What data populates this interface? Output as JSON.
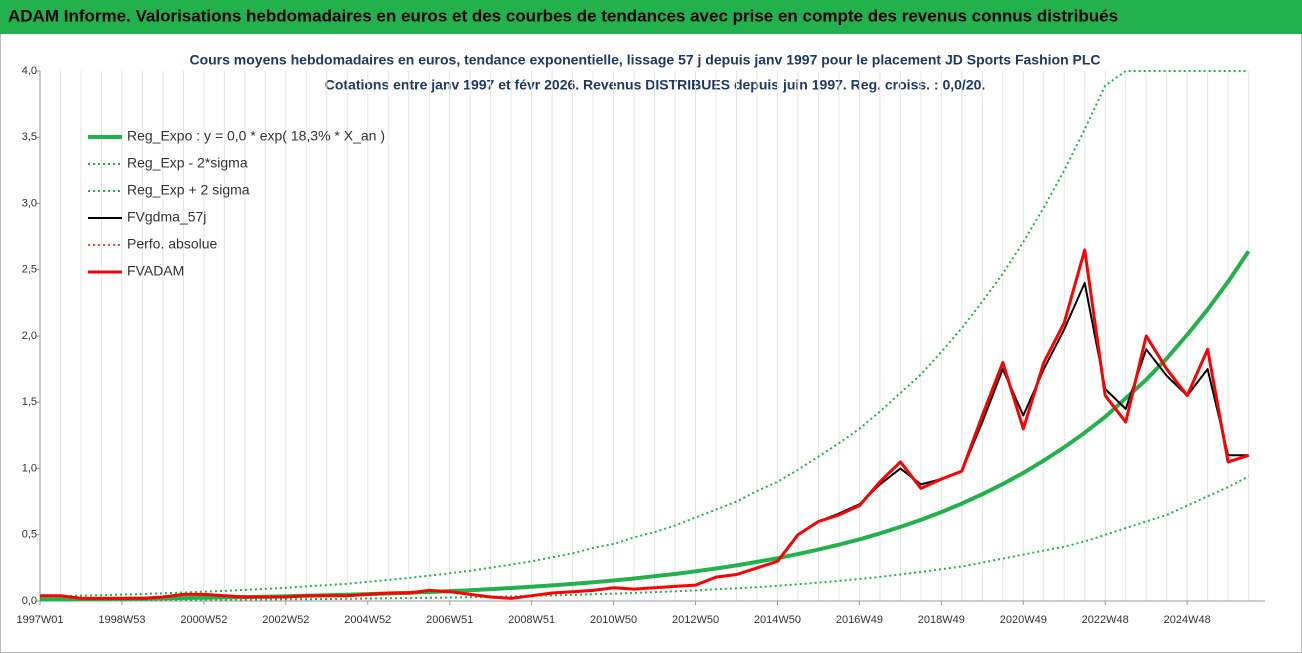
{
  "chart_data": {
    "type": "line",
    "header": "ADAM Informe. Valorisations hebdomadaires en euros et des courbes de tendances avec prise en compte des revenus connus distribués",
    "title": "Cours moyens hebdomadaires en euros, tendance exponentielle, lissage 57 j depuis janv 1997  pour le placement JD Sports Fashion PLC",
    "subtitle": "Cotations entre janv 1997  et  févr 2026. Revenus DISTRIBUES depuis juin 1997.  Reg. croiss. : 0,0/20.",
    "x": [
      1997,
      1997.5,
      1998,
      1998.5,
      1999,
      1999.5,
      2000,
      2000.5,
      2001,
      2001.5,
      2002,
      2002.5,
      2003,
      2003.5,
      2004,
      2004.5,
      2005,
      2005.5,
      2006,
      2006.5,
      2007,
      2007.5,
      2008,
      2008.5,
      2009,
      2009.5,
      2010,
      2010.5,
      2011,
      2011.5,
      2012,
      2012.5,
      2013,
      2013.5,
      2014,
      2014.5,
      2015,
      2015.5,
      2016,
      2016.5,
      2017,
      2017.5,
      2018,
      2018.5,
      2019,
      2019.5,
      2020,
      2020.5,
      2021,
      2021.5,
      2022,
      2022.5,
      2023,
      2023.5,
      2024,
      2024.5,
      2025,
      2025.5,
      2026,
      2026.5
    ],
    "xlim": [
      1997,
      2026.9
    ],
    "xticks": [
      {
        "value": 1997,
        "label": "1997W01"
      },
      {
        "value": 1999,
        "label": "1998W53"
      },
      {
        "value": 2001,
        "label": "2000W52"
      },
      {
        "value": 2003,
        "label": "2002W52"
      },
      {
        "value": 2005,
        "label": "2004W52"
      },
      {
        "value": 2007,
        "label": "2006W51"
      },
      {
        "value": 2009,
        "label": "2008W51"
      },
      {
        "value": 2011,
        "label": "2010W50"
      },
      {
        "value": 2013,
        "label": "2012W50"
      },
      {
        "value": 2015,
        "label": "2014W50"
      },
      {
        "value": 2017,
        "label": "2016W49"
      },
      {
        "value": 2019,
        "label": "2018W49"
      },
      {
        "value": 2021,
        "label": "2020W49"
      },
      {
        "value": 2023,
        "label": "2022W48"
      },
      {
        "value": 2025,
        "label": "2024W48"
      }
    ],
    "ylim": [
      0,
      4
    ],
    "yticks": [
      {
        "value": 0,
        "label": "0,0"
      },
      {
        "value": 0.5,
        "label": "0,5"
      },
      {
        "value": 1,
        "label": "1,0"
      },
      {
        "value": 1.5,
        "label": "1,5"
      },
      {
        "value": 2,
        "label": "2,0"
      },
      {
        "value": 2.5,
        "label": "2,5"
      },
      {
        "value": 3,
        "label": "3,0"
      },
      {
        "value": 3.5,
        "label": "3,5"
      },
      {
        "value": 4,
        "label": "4,0"
      }
    ],
    "xgrid": true,
    "legend": "top-left",
    "series": [
      {
        "name": "Reg_Expo : y = 0,0 * exp( 18,3% *  X_an )",
        "color": "#22b14c",
        "style": "solid",
        "width": 4,
        "values": [
          0.012,
          0.013,
          0.0144,
          0.0158,
          0.0173,
          0.0189,
          0.0208,
          0.0227,
          0.0249,
          0.0273,
          0.0299,
          0.0328,
          0.0359,
          0.0394,
          0.0431,
          0.0473,
          0.0518,
          0.0568,
          0.0622,
          0.0681,
          0.0747,
          0.0818,
          0.0897,
          0.0982,
          0.108,
          0.118,
          0.129,
          0.142,
          0.155,
          0.17,
          0.187,
          0.204,
          0.224,
          0.245,
          0.269,
          0.295,
          0.323,
          0.354,
          0.388,
          0.425,
          0.465,
          0.51,
          0.559,
          0.612,
          0.671,
          0.735,
          0.806,
          0.883,
          0.967,
          1.06,
          1.16,
          1.27,
          1.39,
          1.53,
          1.67,
          1.83,
          2.01,
          2.2,
          2.41,
          2.64
        ]
      },
      {
        "name": "Reg_Exp - 2*sigma",
        "color": "#22b14c",
        "style": "dotted",
        "width": 2,
        "values": [
          0.0043,
          0.0046,
          0.0051,
          0.0056,
          0.0062,
          0.0068,
          0.0074,
          0.0081,
          0.0089,
          0.0098,
          0.0107,
          0.0117,
          0.0128,
          0.0141,
          0.0154,
          0.0169,
          0.0185,
          0.0203,
          0.0222,
          0.0243,
          0.0267,
          0.0292,
          0.032,
          0.035,
          0.039,
          0.042,
          0.046,
          0.051,
          0.055,
          0.061,
          0.067,
          0.073,
          0.08,
          0.088,
          0.096,
          0.105,
          0.115,
          0.126,
          0.139,
          0.152,
          0.166,
          0.182,
          0.2,
          0.22,
          0.24,
          0.26,
          0.29,
          0.32,
          0.35,
          0.38,
          0.41,
          0.45,
          0.5,
          0.55,
          0.6,
          0.65,
          0.72,
          0.79,
          0.86,
          0.94
        ]
      },
      {
        "name": "Reg_Exp + 2 sigma",
        "color": "#22b14c",
        "style": "dotted",
        "width": 2,
        "values": [
          0.034,
          0.036,
          0.04,
          0.044,
          0.048,
          0.053,
          0.058,
          0.064,
          0.07,
          0.076,
          0.084,
          0.092,
          0.1,
          0.11,
          0.12,
          0.13,
          0.145,
          0.159,
          0.174,
          0.191,
          0.209,
          0.229,
          0.251,
          0.275,
          0.3,
          0.33,
          0.36,
          0.4,
          0.43,
          0.48,
          0.52,
          0.57,
          0.63,
          0.69,
          0.75,
          0.83,
          0.9,
          0.99,
          1.09,
          1.19,
          1.3,
          1.43,
          1.57,
          1.71,
          1.88,
          2.06,
          2.26,
          2.47,
          2.71,
          2.97,
          3.25,
          3.56,
          3.89,
          4,
          4,
          4,
          4,
          4,
          4,
          4
        ]
      },
      {
        "name": "FVgdma_57j",
        "color": "#000000",
        "style": "solid",
        "width": 2,
        "values": [
          0.04,
          0.04,
          0.02,
          0.02,
          0.02,
          0.02,
          0.03,
          0.05,
          0.05,
          0.04,
          0.03,
          0.03,
          0.03,
          0.04,
          0.04,
          0.04,
          0.05,
          0.06,
          0.06,
          0.08,
          0.07,
          0.05,
          0.03,
          0.02,
          0.04,
          0.06,
          0.07,
          0.08,
          0.1,
          0.09,
          0.1,
          0.11,
          0.12,
          0.18,
          0.2,
          0.25,
          0.3,
          0.5,
          0.6,
          0.66,
          0.73,
          0.88,
          1.0,
          0.88,
          0.92,
          0.98,
          1.35,
          1.75,
          1.4,
          1.75,
          2.05,
          2.4,
          1.6,
          1.45,
          1.9,
          1.7,
          1.55,
          1.75,
          1.1,
          1.1
        ]
      },
      {
        "name": "Perfo. absolue",
        "color": "#ff0000",
        "style": "dotted",
        "width": 1.5,
        "values": [
          0.04,
          0.04,
          0.02,
          0.02,
          0.02,
          0.02,
          0.03,
          0.05,
          0.05,
          0.04,
          0.03,
          0.03,
          0.03,
          0.04,
          0.04,
          0.04,
          0.05,
          0.06,
          0.06,
          0.08,
          0.07,
          0.05,
          0.03,
          0.02,
          0.04,
          0.06,
          0.07,
          0.08,
          0.1,
          0.09,
          0.1,
          0.11,
          0.12,
          0.18,
          0.2,
          0.25,
          0.3,
          0.5,
          0.6,
          0.65,
          0.72,
          0.9,
          1.05,
          0.85,
          0.92,
          0.98,
          1.4,
          1.8,
          1.3,
          1.8,
          2.1,
          2.65,
          1.55,
          1.35,
          2.0,
          1.75,
          1.55,
          1.9,
          1.05,
          1.1
        ]
      },
      {
        "name": "FVADAM",
        "color": "#ff0000",
        "style": "solid",
        "width": 3,
        "values": [
          0.04,
          0.04,
          0.02,
          0.02,
          0.02,
          0.02,
          0.03,
          0.05,
          0.05,
          0.04,
          0.03,
          0.03,
          0.03,
          0.04,
          0.04,
          0.04,
          0.05,
          0.06,
          0.06,
          0.08,
          0.07,
          0.05,
          0.03,
          0.02,
          0.04,
          0.06,
          0.07,
          0.08,
          0.1,
          0.09,
          0.1,
          0.11,
          0.12,
          0.18,
          0.2,
          0.25,
          0.3,
          0.5,
          0.6,
          0.65,
          0.72,
          0.9,
          1.05,
          0.85,
          0.92,
          0.98,
          1.4,
          1.8,
          1.3,
          1.8,
          2.1,
          2.65,
          1.55,
          1.35,
          2.0,
          1.75,
          1.55,
          1.9,
          1.05,
          1.1
        ]
      }
    ]
  }
}
